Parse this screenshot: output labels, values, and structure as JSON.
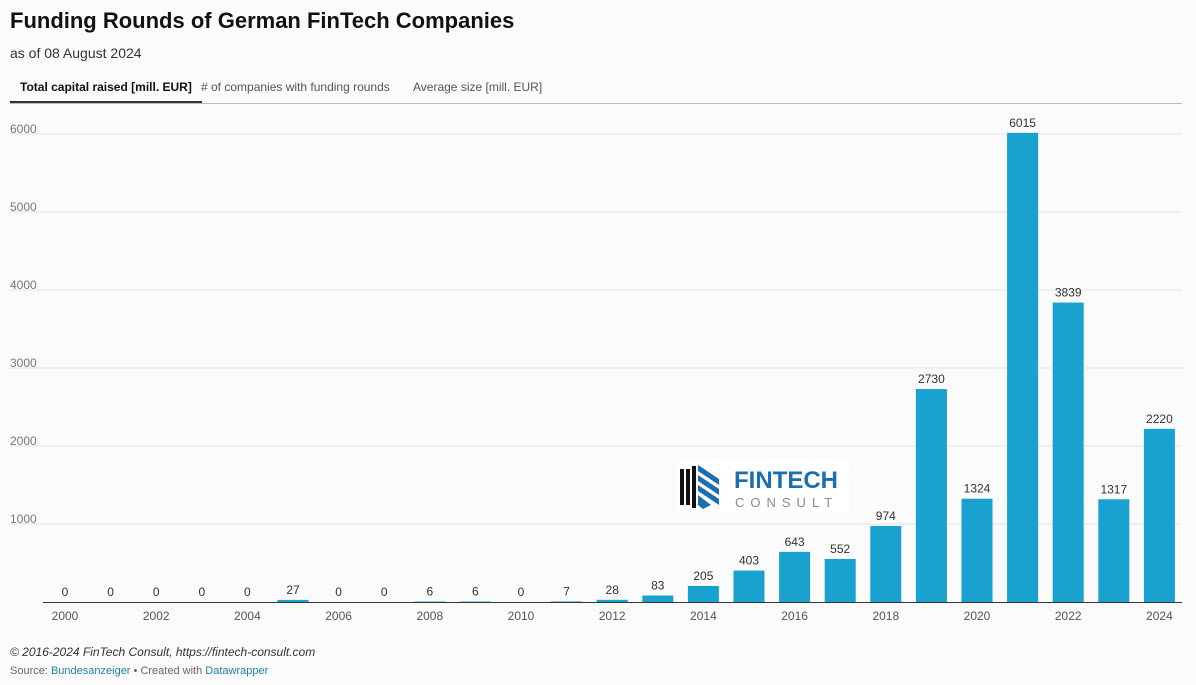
{
  "header": {
    "title": "Funding Rounds of German FinTech Companies",
    "subtitle": "as of 08 August 2024"
  },
  "tabs": [
    {
      "label": "Total capital raised [mill. EUR]",
      "active": true
    },
    {
      "label": "# of companies with funding rounds",
      "active": false
    },
    {
      "label": "Average size [mill. EUR]",
      "active": false
    }
  ],
  "colors": {
    "bar": "#19a2d0",
    "logo_blue": "#1a6fb0",
    "logo_gray": "#8a8a8a",
    "link": "#1d81a2"
  },
  "logo": {
    "line1": "FINTECH",
    "line2": "CONSULT"
  },
  "chart_data": {
    "type": "bar",
    "categories": [
      "2000",
      "2001",
      "2002",
      "2003",
      "2004",
      "2005",
      "2006",
      "2007",
      "2008",
      "2009",
      "2010",
      "2011",
      "2012",
      "2013",
      "2014",
      "2015",
      "2016",
      "2017",
      "2018",
      "2019",
      "2020",
      "2021",
      "2022",
      "2023",
      "2024"
    ],
    "values": [
      0,
      0,
      0,
      0,
      0,
      27,
      0,
      0,
      6,
      6,
      0,
      7,
      28,
      83,
      205,
      403,
      643,
      552,
      974,
      2730,
      1324,
      6015,
      3839,
      1317,
      2220
    ],
    "x_tick_labels": [
      "2000",
      "2002",
      "2004",
      "2006",
      "2008",
      "2010",
      "2012",
      "2014",
      "2016",
      "2018",
      "2020",
      "2022",
      "2024"
    ],
    "y_ticks": [
      1000,
      2000,
      3000,
      4000,
      5000,
      6000
    ],
    "ylim": [
      0,
      6000
    ],
    "grid": true,
    "data_labels": true
  },
  "footer": {
    "copyright": "© 2016-2024 FinTech Consult, https://fintech-consult.com",
    "source_prefix": "Source: ",
    "source_link": "Bundesanzeiger",
    "created_with": " • Created with ",
    "tool_link": "Datawrapper"
  }
}
